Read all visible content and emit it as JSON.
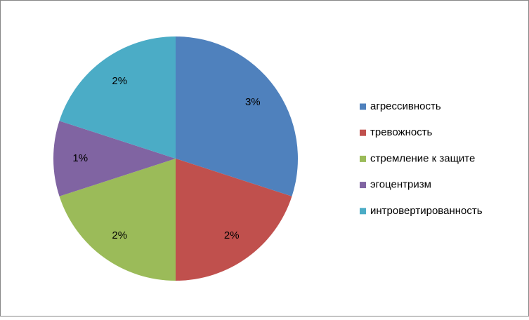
{
  "chart_data": {
    "type": "pie",
    "categories": [
      "агрессивность",
      "тревожность",
      "стремление к защите",
      "эгоцентризм",
      "интровертированность"
    ],
    "values": [
      3,
      2,
      2,
      1,
      2
    ],
    "value_labels": [
      "3%",
      "2%",
      "2%",
      "1%",
      "2%"
    ],
    "colors": [
      "#4f81bd",
      "#c0504d",
      "#9bbb59",
      "#8064a2",
      "#4bacc6"
    ],
    "legend": "right"
  }
}
